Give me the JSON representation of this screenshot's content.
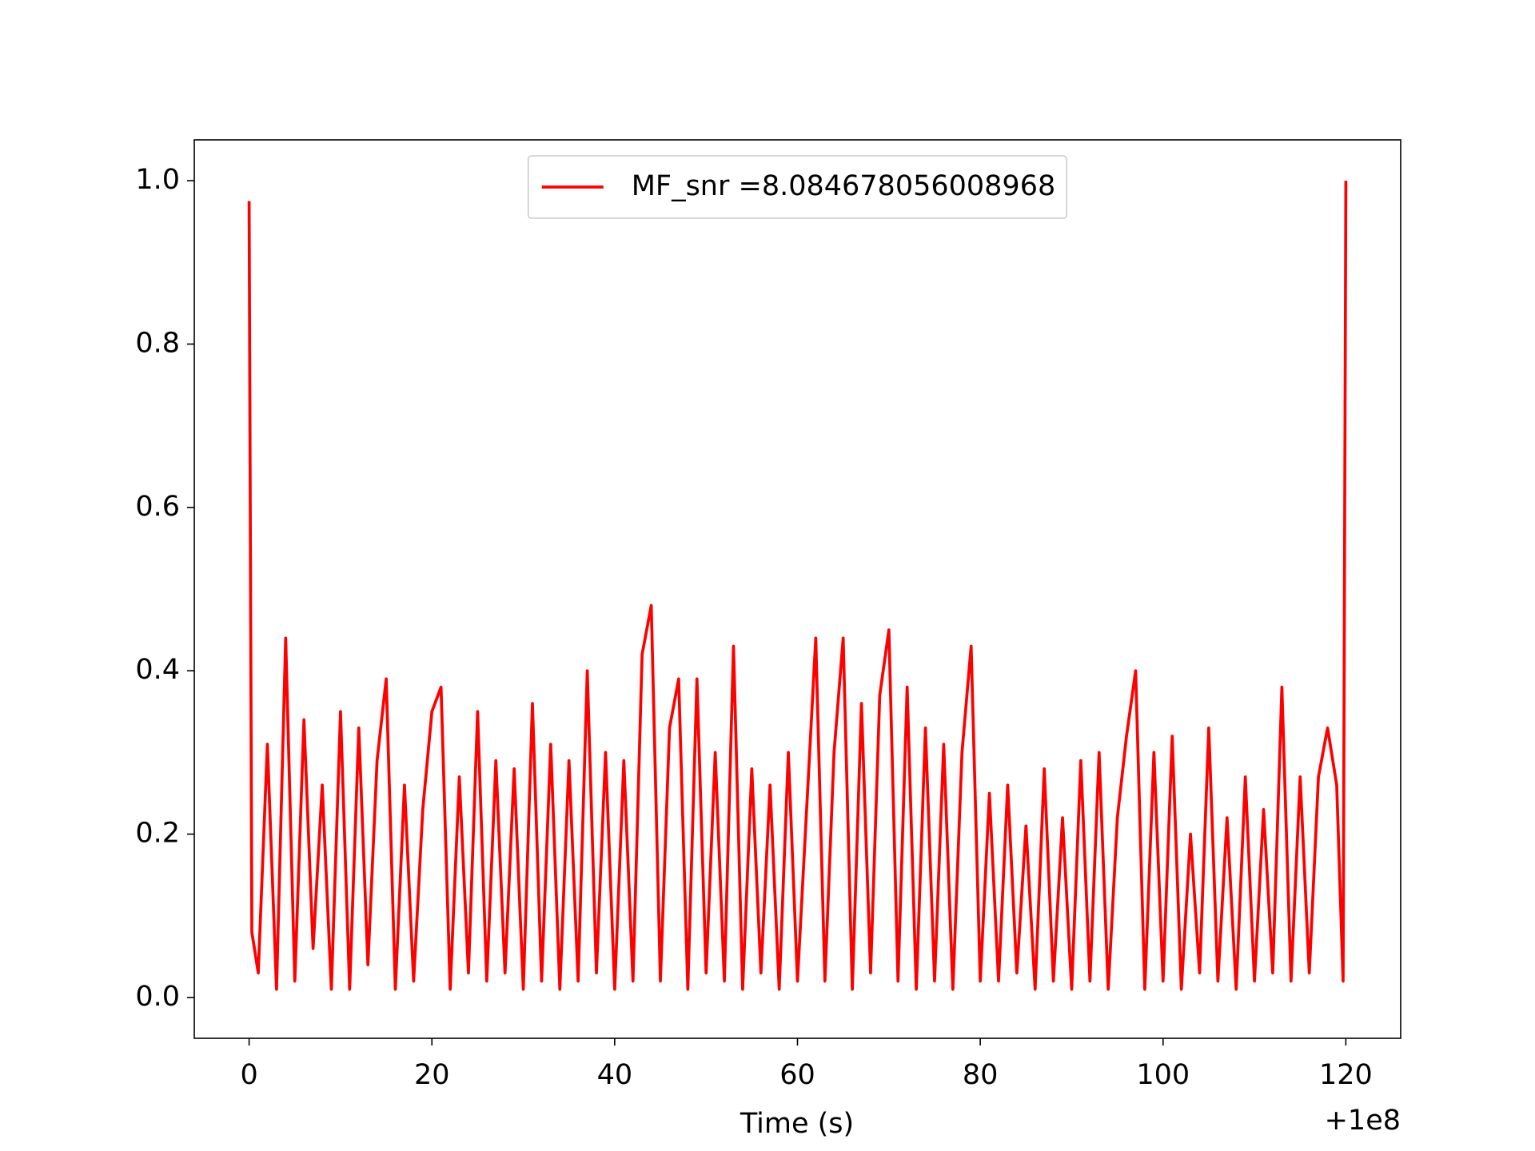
{
  "chart_data": {
    "type": "line",
    "xlabel": "Time (s)",
    "x_offset_label": "+1e8",
    "x": [
      0,
      0.3,
      1,
      2,
      3,
      4,
      5,
      6,
      7,
      8,
      9,
      10,
      11,
      12,
      13,
      14,
      15,
      16,
      17,
      18,
      19,
      20,
      21,
      22,
      23,
      24,
      25,
      26,
      27,
      28,
      29,
      30,
      31,
      32,
      33,
      34,
      35,
      36,
      37,
      38,
      39,
      40,
      41,
      42,
      43,
      44,
      45,
      46,
      47,
      48,
      49,
      50,
      51,
      52,
      53,
      54,
      55,
      56,
      57,
      58,
      59,
      60,
      61,
      62,
      63,
      64,
      65,
      66,
      67,
      68,
      69,
      70,
      71,
      72,
      73,
      74,
      75,
      76,
      77,
      78,
      79,
      80,
      81,
      82,
      83,
      84,
      85,
      86,
      87,
      88,
      89,
      90,
      91,
      92,
      93,
      94,
      95,
      96,
      97,
      98,
      99,
      100,
      101,
      102,
      103,
      104,
      105,
      106,
      107,
      108,
      109,
      110,
      111,
      112,
      113,
      114,
      115,
      116,
      117,
      118,
      119,
      119.7,
      120
    ],
    "series": [
      {
        "name": "MF_snr =8.084678056008968",
        "color": "#ff0000",
        "values": [
          0.975,
          0.08,
          0.03,
          0.31,
          0.01,
          0.44,
          0.02,
          0.34,
          0.06,
          0.26,
          0.01,
          0.35,
          0.01,
          0.33,
          0.04,
          0.29,
          0.39,
          0.01,
          0.26,
          0.02,
          0.23,
          0.35,
          0.38,
          0.01,
          0.27,
          0.03,
          0.35,
          0.02,
          0.29,
          0.03,
          0.28,
          0.01,
          0.36,
          0.02,
          0.31,
          0.01,
          0.29,
          0.02,
          0.4,
          0.03,
          0.3,
          0.01,
          0.29,
          0.02,
          0.42,
          0.48,
          0.02,
          0.33,
          0.39,
          0.01,
          0.39,
          0.03,
          0.3,
          0.02,
          0.43,
          0.01,
          0.28,
          0.03,
          0.26,
          0.01,
          0.3,
          0.02,
          0.23,
          0.44,
          0.02,
          0.3,
          0.44,
          0.01,
          0.36,
          0.03,
          0.37,
          0.45,
          0.02,
          0.38,
          0.01,
          0.33,
          0.02,
          0.31,
          0.01,
          0.3,
          0.43,
          0.02,
          0.25,
          0.02,
          0.26,
          0.03,
          0.21,
          0.01,
          0.28,
          0.02,
          0.22,
          0.01,
          0.29,
          0.02,
          0.3,
          0.01,
          0.22,
          0.32,
          0.4,
          0.01,
          0.3,
          0.02,
          0.32,
          0.01,
          0.2,
          0.03,
          0.33,
          0.02,
          0.22,
          0.01,
          0.27,
          0.02,
          0.23,
          0.03,
          0.38,
          0.02,
          0.27,
          0.03,
          0.27,
          0.33,
          0.26,
          0.02,
          1.0
        ]
      }
    ],
    "xlim": [
      -6,
      126
    ],
    "ylim": [
      -0.05,
      1.05
    ],
    "xticks": [
      0,
      20,
      40,
      60,
      80,
      100,
      120
    ],
    "yticks": [
      {
        "value": 0,
        "label": "0.0"
      },
      0.2,
      0.4,
      0.6,
      0.8,
      {
        "value": 1,
        "label": "1.0"
      }
    ],
    "legend": "upper center",
    "grid": false
  }
}
